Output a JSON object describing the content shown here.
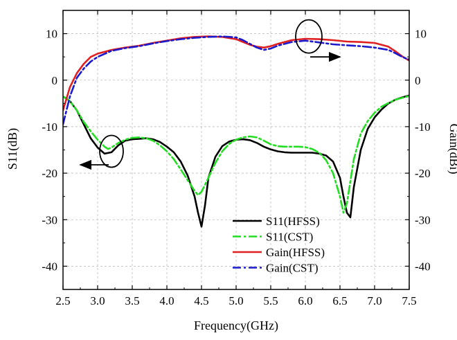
{
  "chart_data": {
    "type": "line",
    "xlabel": "Frequency(GHz)",
    "ylabel_left": "S11(dB)",
    "ylabel_right": "Gain(dBi)",
    "xlim": [
      2.5,
      7.5
    ],
    "ylim": [
      -45,
      15
    ],
    "xticks": [
      "2.5",
      "3.0",
      "3.5",
      "4.0",
      "4.5",
      "5.0",
      "5.5",
      "6.0",
      "6.5",
      "7.0",
      "7.5"
    ],
    "yticks_left": [
      "10",
      "0",
      "-10",
      "-20",
      "-30",
      "-40"
    ],
    "yticks_right": [
      "10",
      "0",
      "-10",
      "-20",
      "-30",
      "-40"
    ],
    "grid": true,
    "legend_position": "bottom-right",
    "series": [
      {
        "name": "S11(HFSS)",
        "color": "#000000",
        "style": "solid",
        "axis": "left",
        "x": [
          2.5,
          2.6,
          2.7,
          2.8,
          2.9,
          3.0,
          3.1,
          3.2,
          3.3,
          3.4,
          3.5,
          3.6,
          3.7,
          3.8,
          3.9,
          4.0,
          4.1,
          4.2,
          4.3,
          4.4,
          4.45,
          4.5,
          4.55,
          4.6,
          4.7,
          4.8,
          4.9,
          5.0,
          5.1,
          5.2,
          5.3,
          5.4,
          5.5,
          5.6,
          5.7,
          5.8,
          5.9,
          6.0,
          6.1,
          6.2,
          6.3,
          6.4,
          6.5,
          6.55,
          6.6,
          6.65,
          6.7,
          6.8,
          6.9,
          7.0,
          7.1,
          7.2,
          7.3,
          7.4,
          7.5
        ],
        "values": [
          -3.5,
          -4.5,
          -6.5,
          -9.5,
          -12.5,
          -14.5,
          -15.8,
          -15.5,
          -14.0,
          -13.0,
          -12.7,
          -12.6,
          -12.5,
          -12.7,
          -13.3,
          -14.3,
          -15.5,
          -17.5,
          -20.5,
          -25.0,
          -28.5,
          -31.5,
          -27.0,
          -21.0,
          -16.5,
          -14.2,
          -13.2,
          -12.8,
          -12.7,
          -12.9,
          -13.5,
          -14.3,
          -14.9,
          -15.3,
          -15.5,
          -15.6,
          -15.6,
          -15.6,
          -15.6,
          -15.8,
          -16.2,
          -17.5,
          -21.0,
          -25.0,
          -28.5,
          -29.5,
          -23.0,
          -15.0,
          -10.5,
          -8.0,
          -6.3,
          -5.0,
          -4.2,
          -3.7,
          -3.3
        ]
      },
      {
        "name": "S11(CST)",
        "color": "#22dd22",
        "style": "dashdot",
        "axis": "left",
        "x": [
          2.5,
          2.6,
          2.7,
          2.8,
          2.9,
          3.0,
          3.1,
          3.15,
          3.2,
          3.3,
          3.4,
          3.5,
          3.6,
          3.7,
          3.8,
          3.9,
          4.0,
          4.1,
          4.2,
          4.3,
          4.4,
          4.45,
          4.5,
          4.6,
          4.7,
          4.8,
          4.9,
          5.0,
          5.1,
          5.2,
          5.3,
          5.4,
          5.5,
          5.6,
          5.7,
          5.8,
          5.9,
          6.0,
          6.1,
          6.2,
          6.3,
          6.4,
          6.5,
          6.55,
          6.6,
          6.7,
          6.8,
          6.9,
          7.0,
          7.1,
          7.2,
          7.3,
          7.4,
          7.5
        ],
        "values": [
          -3.5,
          -4.5,
          -6.5,
          -9.0,
          -11.0,
          -12.8,
          -14.3,
          -14.8,
          -14.5,
          -13.5,
          -12.8,
          -12.4,
          -12.3,
          -12.5,
          -13.0,
          -14.0,
          -15.3,
          -17.0,
          -19.2,
          -21.5,
          -23.8,
          -24.7,
          -24.0,
          -21.0,
          -17.8,
          -15.3,
          -13.7,
          -12.8,
          -12.3,
          -12.1,
          -12.3,
          -13.0,
          -13.8,
          -14.2,
          -14.3,
          -14.3,
          -14.3,
          -14.4,
          -14.8,
          -15.6,
          -17.2,
          -20.0,
          -25.0,
          -28.5,
          -26.5,
          -17.0,
          -11.5,
          -8.8,
          -7.0,
          -5.7,
          -4.9,
          -4.2,
          -3.8,
          -3.4
        ]
      },
      {
        "name": "Gain(HFSS)",
        "color": "#e02020",
        "style": "solid",
        "axis": "right",
        "x": [
          2.5,
          2.6,
          2.7,
          2.8,
          2.9,
          3.0,
          3.2,
          3.4,
          3.6,
          3.8,
          4.0,
          4.2,
          4.4,
          4.6,
          4.8,
          5.0,
          5.1,
          5.2,
          5.3,
          5.4,
          5.5,
          5.6,
          5.8,
          6.0,
          6.2,
          6.4,
          6.6,
          6.8,
          7.0,
          7.2,
          7.3,
          7.4,
          7.5
        ],
        "values": [
          -6.5,
          -1.5,
          1.5,
          3.5,
          5.0,
          5.7,
          6.5,
          7.0,
          7.4,
          8.0,
          8.5,
          9.0,
          9.3,
          9.4,
          9.3,
          8.8,
          8.2,
          7.6,
          7.2,
          7.0,
          7.3,
          7.8,
          8.6,
          8.9,
          8.8,
          8.6,
          8.3,
          8.2,
          8.0,
          7.2,
          6.2,
          5.1,
          4.2
        ]
      },
      {
        "name": "Gain(CST)",
        "color": "#1a1acc",
        "style": "dashdot",
        "axis": "right",
        "x": [
          2.5,
          2.6,
          2.7,
          2.8,
          2.9,
          3.0,
          3.2,
          3.4,
          3.6,
          3.8,
          4.0,
          4.2,
          4.4,
          4.6,
          4.8,
          5.0,
          5.1,
          5.2,
          5.3,
          5.4,
          5.5,
          5.6,
          5.8,
          6.0,
          6.2,
          6.4,
          6.6,
          6.8,
          7.0,
          7.2,
          7.3,
          7.4,
          7.5
        ],
        "values": [
          -9.5,
          -3.5,
          0.5,
          2.5,
          4.0,
          5.0,
          6.3,
          6.9,
          7.3,
          7.9,
          8.4,
          8.8,
          9.1,
          9.3,
          9.4,
          9.2,
          8.6,
          7.8,
          7.0,
          6.5,
          6.8,
          7.4,
          8.2,
          8.5,
          8.1,
          7.7,
          7.5,
          7.3,
          7.0,
          6.5,
          5.8,
          5.0,
          4.4
        ]
      }
    ]
  }
}
